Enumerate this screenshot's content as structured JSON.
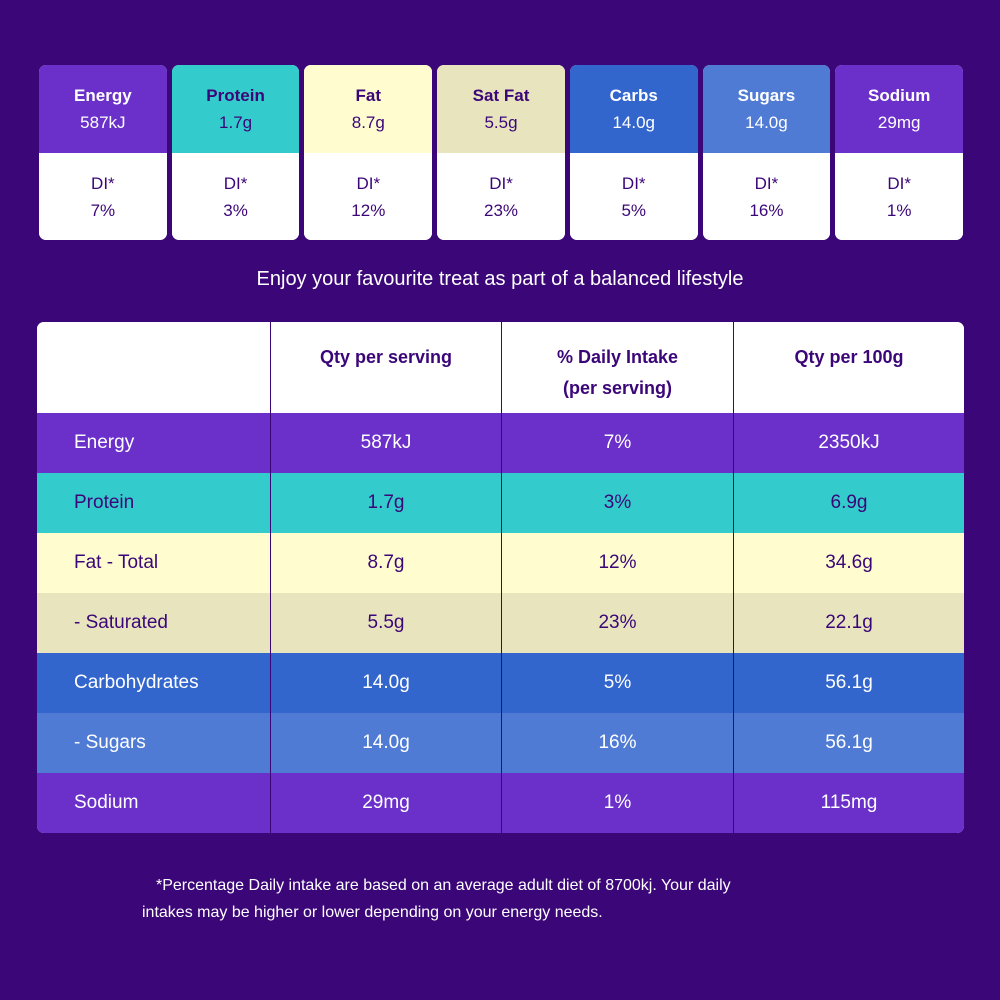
{
  "tiles": [
    {
      "name": "Energy",
      "qty": "587kJ",
      "di_label": "DI*",
      "di": "7%",
      "color": "#6a30c9"
    },
    {
      "name": "Protein",
      "qty": "1.7g",
      "di_label": "DI*",
      "di": "3%",
      "color": "#33cbcc"
    },
    {
      "name": "Fat",
      "qty": "8.7g",
      "di_label": "DI*",
      "di": "12%",
      "color": "#fffdd0"
    },
    {
      "name": "Sat Fat",
      "qty": "5.5g",
      "di_label": "DI*",
      "di": "23%",
      "color": "#e8e5be"
    },
    {
      "name": "Carbs",
      "qty": "14.0g",
      "di_label": "DI*",
      "di": "5%",
      "color": "#3366cc"
    },
    {
      "name": "Sugars",
      "qty": "14.0g",
      "di_label": "DI*",
      "di": "16%",
      "color": "#4f7bd4"
    },
    {
      "name": "Sodium",
      "qty": "29mg",
      "di_label": "DI*",
      "di": "1%",
      "color": "#6a30c9"
    }
  ],
  "tagline": "Enjoy your favourite treat as part of a balanced lifestyle",
  "table": {
    "headers": [
      "",
      "Qty per serving",
      "% Daily Intake\n(per serving)",
      "Qty per 100g"
    ],
    "rows": [
      {
        "label": "Energy",
        "serving": "587kJ",
        "di": "7%",
        "per100": "2350kJ",
        "color": "#6a30c9"
      },
      {
        "label": "Protein",
        "serving": "1.7g",
        "di": "3%",
        "per100": "6.9g",
        "color": "#33cbcc"
      },
      {
        "label": "Fat - Total",
        "serving": "8.7g",
        "di": "12%",
        "per100": "34.6g",
        "color": "#fffdd0"
      },
      {
        "label": "- Saturated",
        "serving": "5.5g",
        "di": "23%",
        "per100": "22.1g",
        "color": "#e8e5be"
      },
      {
        "label": "Carbohydrates",
        "serving": "14.0g",
        "di": "5%",
        "per100": "56.1g",
        "color": "#3366cc"
      },
      {
        "label": "- Sugars",
        "serving": "14.0g",
        "di": "16%",
        "per100": "56.1g",
        "color": "#4f7bd4"
      },
      {
        "label": "Sodium",
        "serving": "29mg",
        "di": "1%",
        "per100": "115mg",
        "color": "#6a30c9"
      }
    ]
  },
  "footnote": {
    "line1": "*Percentage Daily intake are based on an average adult diet of 8700kj. Your daily",
    "line2": "intakes may be higher or lower depending on your energy needs."
  },
  "colors": {
    "background": "#3b0678",
    "purple": "#6a30c9",
    "teal": "#33cbcc",
    "cream": "#fffdd0",
    "beige": "#e8e5be",
    "blue": "#3366cc",
    "light_blue": "#4f7bd4"
  }
}
